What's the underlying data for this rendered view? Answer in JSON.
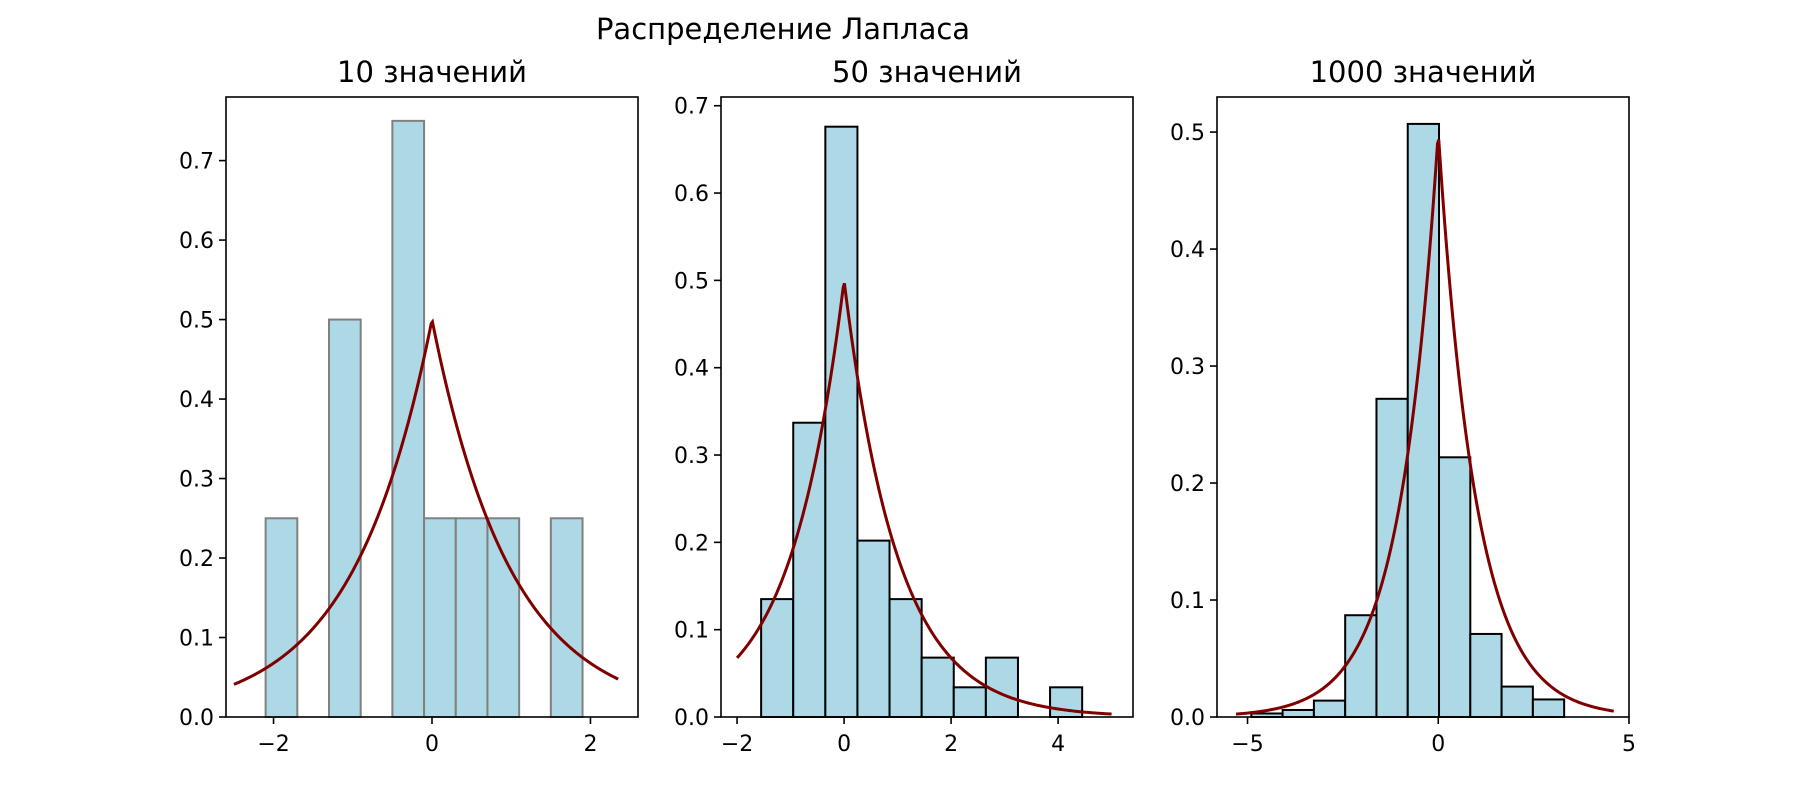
{
  "figure": {
    "suptitle": "Распределение Лапласа"
  },
  "colors": {
    "bar_fill": "#add8e6",
    "bar_edge_first": "#808080",
    "bar_edge_other": "#000000",
    "pdf_line": "#800000"
  },
  "chart_data": [
    {
      "type": "bar",
      "title": "10 значений",
      "xlabel": "",
      "ylabel": "",
      "xlim": [
        -2.6,
        2.6
      ],
      "ylim": [
        0,
        0.78
      ],
      "xticks": [
        -2,
        0,
        2
      ],
      "xtick_labels": [
        "−2",
        "0",
        "2"
      ],
      "yticks": [
        0.0,
        0.1,
        0.2,
        0.3,
        0.4,
        0.5,
        0.6,
        0.7
      ],
      "ytick_labels": [
        "0.0",
        "0.1",
        "0.2",
        "0.3",
        "0.4",
        "0.5",
        "0.6",
        "0.7"
      ],
      "bins": [
        {
          "x0": -2.1,
          "x1": -1.7,
          "value": 0.25
        },
        {
          "x0": -1.3,
          "x1": -0.9,
          "value": 0.5
        },
        {
          "x0": -0.5,
          "x1": -0.1,
          "value": 0.75
        },
        {
          "x0": -0.1,
          "x1": 0.3,
          "value": 0.25
        },
        {
          "x0": 0.3,
          "x1": 0.7,
          "value": 0.25
        },
        {
          "x0": 0.7,
          "x1": 1.1,
          "value": 0.25
        },
        {
          "x0": 1.5,
          "x1": 1.9,
          "value": 0.25
        }
      ],
      "pdf": {
        "mu": 0,
        "b": 1,
        "x_range": [
          -2.5,
          2.35
        ]
      },
      "grid": false,
      "legend": "none"
    },
    {
      "type": "bar",
      "title": "50 значений",
      "xlabel": "",
      "ylabel": "",
      "xlim": [
        -2.3,
        5.4
      ],
      "ylim": [
        0,
        0.71
      ],
      "xticks": [
        -2,
        0,
        2,
        4
      ],
      "xtick_labels": [
        "−2",
        "0",
        "2",
        "4"
      ],
      "yticks": [
        0.0,
        0.1,
        0.2,
        0.3,
        0.4,
        0.5,
        0.6,
        0.7
      ],
      "ytick_labels": [
        "0.0",
        "0.1",
        "0.2",
        "0.3",
        "0.4",
        "0.5",
        "0.6",
        "0.7"
      ],
      "bins": [
        {
          "x0": -1.55,
          "x1": -0.95,
          "value": 0.135
        },
        {
          "x0": -0.95,
          "x1": -0.35,
          "value": 0.337
        },
        {
          "x0": -0.35,
          "x1": 0.25,
          "value": 0.676
        },
        {
          "x0": 0.25,
          "x1": 0.85,
          "value": 0.202
        },
        {
          "x0": 0.85,
          "x1": 1.45,
          "value": 0.135
        },
        {
          "x0": 1.45,
          "x1": 2.05,
          "value": 0.068
        },
        {
          "x0": 2.05,
          "x1": 2.65,
          "value": 0.034
        },
        {
          "x0": 2.65,
          "x1": 3.25,
          "value": 0.068
        },
        {
          "x0": 3.25,
          "x1": 3.85,
          "value": 0.0
        },
        {
          "x0": 3.85,
          "x1": 4.45,
          "value": 0.034
        }
      ],
      "pdf": {
        "mu": 0,
        "b": 1,
        "x_range": [
          -2.0,
          5.0
        ]
      },
      "grid": false,
      "legend": "none"
    },
    {
      "type": "bar",
      "title": "1000 значений",
      "xlabel": "",
      "ylabel": "",
      "xlim": [
        -5.8,
        5.0
      ],
      "ylim": [
        0,
        0.53
      ],
      "xticks": [
        -5,
        0,
        5
      ],
      "xtick_labels": [
        "−5",
        "0",
        "5"
      ],
      "yticks": [
        0.0,
        0.1,
        0.2,
        0.3,
        0.4,
        0.5
      ],
      "ytick_labels": [
        "0.0",
        "0.1",
        "0.2",
        "0.3",
        "0.4",
        "0.5"
      ],
      "bins": [
        {
          "x0": -4.9,
          "x1": -4.08,
          "value": 0.003
        },
        {
          "x0": -4.08,
          "x1": -3.26,
          "value": 0.006
        },
        {
          "x0": -3.26,
          "x1": -2.44,
          "value": 0.014
        },
        {
          "x0": -2.44,
          "x1": -1.62,
          "value": 0.087
        },
        {
          "x0": -1.62,
          "x1": -0.8,
          "value": 0.272
        },
        {
          "x0": -0.8,
          "x1": 0.02,
          "value": 0.507
        },
        {
          "x0": 0.02,
          "x1": 0.84,
          "value": 0.222
        },
        {
          "x0": 0.84,
          "x1": 1.66,
          "value": 0.071
        },
        {
          "x0": 1.66,
          "x1": 2.48,
          "value": 0.026
        },
        {
          "x0": 2.48,
          "x1": 3.3,
          "value": 0.015
        }
      ],
      "pdf": {
        "mu": 0,
        "b": 1,
        "x_range": [
          -5.3,
          4.6
        ]
      },
      "grid": false,
      "legend": "none"
    }
  ]
}
